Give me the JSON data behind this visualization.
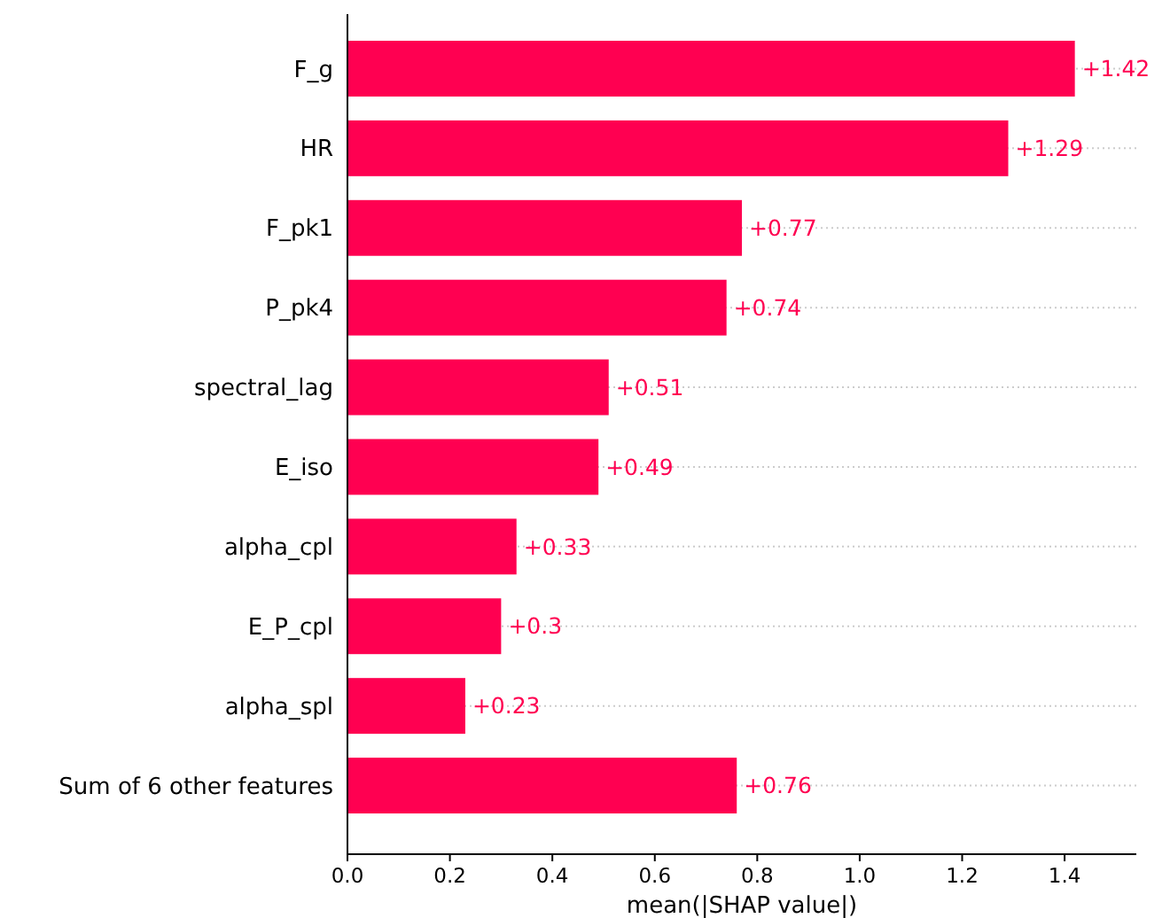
{
  "chart_data": {
    "type": "bar",
    "orientation": "horizontal",
    "categories": [
      "F_g",
      "HR",
      "F_pk1",
      "P_pk4",
      "spectral_lag",
      "E_iso",
      "alpha_cpl",
      "E_P_cpl",
      "alpha_spl",
      "Sum of 6 other features"
    ],
    "values": [
      1.42,
      1.29,
      0.77,
      0.74,
      0.51,
      0.49,
      0.33,
      0.3,
      0.23,
      0.76
    ],
    "value_labels": [
      "+1.42",
      "+1.29",
      "+0.77",
      "+0.74",
      "+0.51",
      "+0.49",
      "+0.33",
      "+0.3",
      "+0.23",
      "+0.76"
    ],
    "color": "#ff0051",
    "xlim": [
      0,
      1.54
    ],
    "xticks": [
      {
        "value": 0,
        "label": "0.0"
      },
      {
        "value": 0.2,
        "label": "0.2"
      },
      {
        "value": 0.4,
        "label": "0.4"
      },
      {
        "value": 0.6,
        "label": "0.6"
      },
      {
        "value": 0.8,
        "label": "0.8"
      },
      {
        "value": 1,
        "label": "1.0"
      },
      {
        "value": 1.2,
        "label": "1.2"
      },
      {
        "value": 1.4,
        "label": "1.4"
      }
    ],
    "xlabel": "mean(|SHAP value|)",
    "grid": "y"
  }
}
